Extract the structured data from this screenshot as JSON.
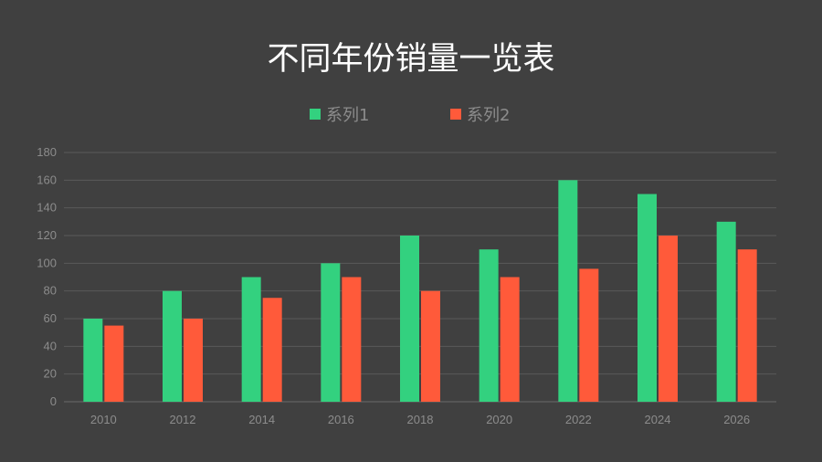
{
  "chart_data": {
    "type": "bar",
    "title": "不同年份销量一览表",
    "categories": [
      "2010",
      "2012",
      "2014",
      "2016",
      "2018",
      "2020",
      "2022",
      "2024",
      "2026"
    ],
    "series": [
      {
        "name": "系列1",
        "color": "#33d17f",
        "values": [
          60,
          80,
          90,
          100,
          120,
          110,
          160,
          150,
          130
        ]
      },
      {
        "name": "系列2",
        "color": "#ff5a3a",
        "values": [
          55,
          60,
          75,
          90,
          80,
          90,
          96,
          120,
          110
        ]
      }
    ],
    "ylim": [
      0,
      180
    ],
    "yticks": [
      "0",
      "20",
      "40",
      "60",
      "80",
      "100",
      "120",
      "140",
      "160",
      "180"
    ],
    "grid": true,
    "legend": "top"
  }
}
